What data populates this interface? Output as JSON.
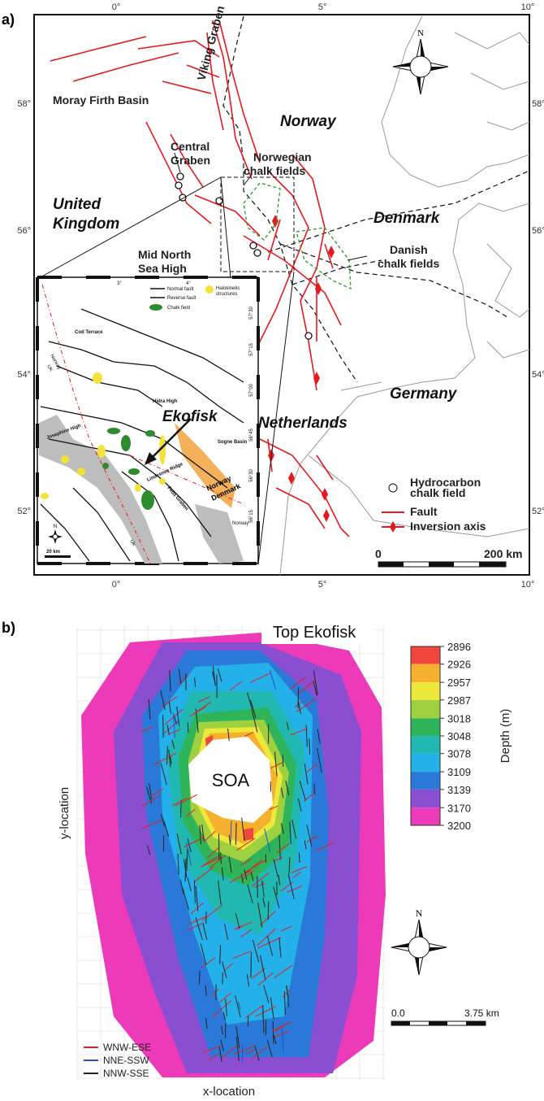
{
  "panel_a": {
    "label": "a)",
    "lon_ticks": [
      "0°",
      "5°",
      "10°"
    ],
    "lat_ticks": [
      "58°",
      "56°",
      "54°",
      "52°"
    ],
    "places": [
      [
        "Moray Firth Basin"
      ],
      [
        "Viking Graben"
      ],
      [
        "Norway"
      ],
      [
        "Central",
        "Graben"
      ],
      [
        "Norwegian",
        "chalk fields"
      ],
      [
        "United",
        "Kingdom"
      ],
      [
        "Denmark"
      ],
      [
        "Mid North",
        "Sea High"
      ],
      [
        "Danish",
        "chalk fields"
      ],
      [
        "Germany"
      ],
      [
        "Netherlands"
      ]
    ],
    "compass": "N",
    "legend": [
      [
        "Hydrocarbon",
        "chalk field"
      ],
      [
        "Fault"
      ],
      [
        "Inversion axis"
      ]
    ],
    "scale": [
      "0",
      "200 km"
    ],
    "inset": {
      "legend": [
        [
          "Normal fault"
        ],
        [
          "Reverse fault"
        ],
        [
          "Chalk field"
        ],
        [
          "Halokinetic",
          "structures"
        ]
      ],
      "labels": [
        "Cod Terrace",
        "Norway",
        "UK",
        "Ekofisk",
        "Hidra High",
        "Sogne Basin",
        "Josephine High",
        "Feda Graben",
        "Lindesnes Ridge",
        "Norway",
        "Denmark",
        "UK",
        "Norway"
      ],
      "lon_ticks": [
        "3°",
        "4°"
      ],
      "lat_ticks": [
        "57°30",
        "57°15",
        "57°00",
        "56°45",
        "56°30",
        "56°15"
      ],
      "compass": "N",
      "scale": "20 km"
    }
  },
  "panel_b": {
    "label": "b)",
    "title": "Top Ekofisk",
    "center_label": "SOA",
    "y_label": "y-location",
    "x_label": "x-location",
    "colorbar": {
      "title": "Depth (m)",
      "ticks": [
        2896,
        2926,
        2957,
        2987,
        3018,
        3048,
        3078,
        3109,
        3139,
        3170,
        3200
      ],
      "colors": [
        "#f0463c",
        "#f5b12e",
        "#eee83a",
        "#9fd040",
        "#2fb45a",
        "#20b8b0",
        "#24b0e8",
        "#2a78d8",
        "#8a4fd0",
        "#ec3ab8"
      ]
    },
    "legend": [
      {
        "name": "WNW-ESE",
        "color": "#e02020"
      },
      {
        "name": "NNE-SSW",
        "color": "#1e50d8"
      },
      {
        "name": "NNW-SSE",
        "color": "#222222"
      }
    ],
    "compass": "N",
    "scale": [
      "0.0",
      "3.75 km"
    ]
  }
}
